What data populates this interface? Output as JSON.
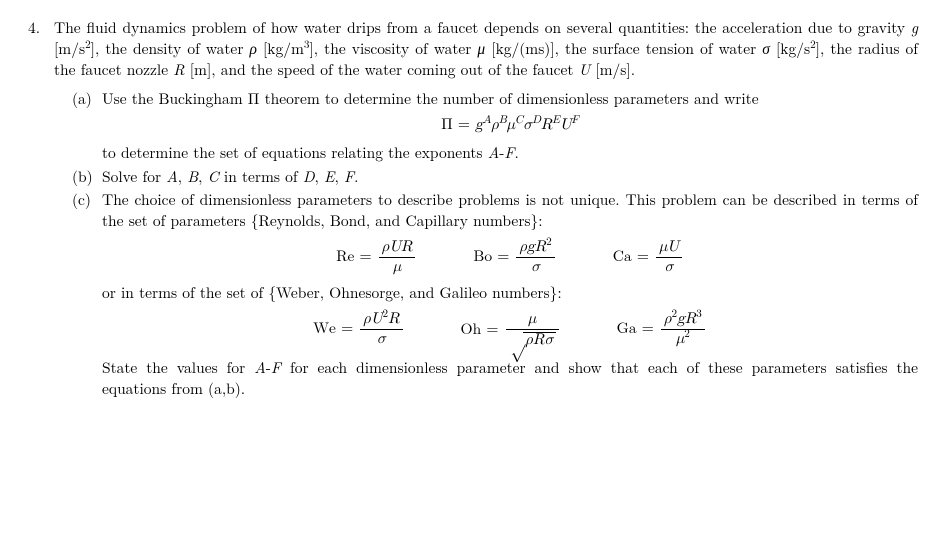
{
  "problem": {
    "number": "4.",
    "intro": "The fluid dynamics problem of how water drips from a faucet depends on several quantities: the acceleration due to gravity g [m/s²], the density of water ρ [kg/m³], the viscosity of water μ [kg/(ms)], the surface tension of water σ [kg/s²], the radius of the faucet nozzle R [m], and the speed of the water coming out of the faucet U [m/s]."
  },
  "parts": {
    "a": {
      "label": "(a)",
      "text1": "Use the Buckingham Π theorem to determine the number of dimensionless parameters and write",
      "eq_lhs": "Π = ",
      "eq_rhs": "g^{A} ρ^{B} μ^{C} σ^{D} R^{E} U^{F}",
      "text2": "to determine the set of equations relating the exponents A-F."
    },
    "b": {
      "label": "(b)",
      "text": "Solve for A, B, C in terms of D, E, F."
    },
    "c": {
      "label": "(c)",
      "text1": "The choice of dimensionless parameters to describe problems is not unique. This problem can be described in terms of the set of parameters {Reynolds, Bond, and Capillary numbers}:",
      "set1": {
        "Re": {
          "name": "Re",
          "num": "ρUR",
          "den": "μ"
        },
        "Bo": {
          "name": "Bo",
          "num": "ρgR²",
          "den": "σ"
        },
        "Ca": {
          "name": "Ca",
          "num": "μU",
          "den": "σ"
        }
      },
      "text2": "or in terms of the set of {Weber, Ohnesorge, and Galileo numbers}:",
      "set2": {
        "We": {
          "name": "We",
          "num": "ρU²R",
          "den": "σ"
        },
        "Oh": {
          "name": "Oh",
          "num": "μ",
          "den": "√(ρRσ)"
        },
        "Ga": {
          "name": "Ga",
          "num": "ρ²gR³",
          "den": "μ²"
        }
      },
      "text3": "State the values for A-F for each dimensionless parameter and show that each of these parameters satisfies the equations from (a,b)."
    }
  }
}
